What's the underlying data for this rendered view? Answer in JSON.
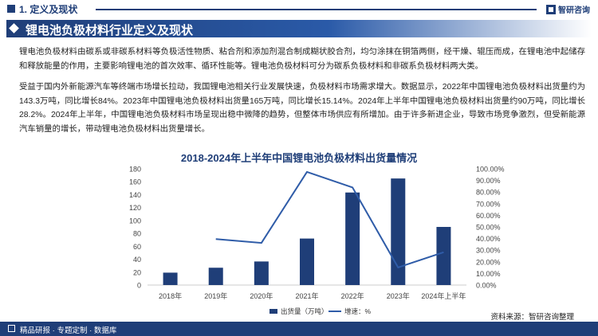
{
  "header": {
    "section_label": "1. 定义及现状",
    "brand": "智研咨询"
  },
  "title": "锂电池负极材料行业定义及现状",
  "paragraphs": [
    "锂电池负极材料由碳系或非碳系材料等负极活性物质、粘合剂和添加剂混合制成糊状胶合剂，均匀涂抹在铜箔两侧，经干燥、辊压而成，在锂电池中起储存和释放能量的作用，主要影响锂电池的首次效率、循环性能等。锂电池负极材料可分为碳系负极材料和非碳系负极材料两大类。",
    "受益于国内外新能源汽车等终端市场增长拉动，我国锂电池相关行业发展快速，负极材料市场需求增大。数据显示，2022年中国锂电池负极材料出货量约为143.3万吨，同比增长84%。2023年中国锂电池负极材料出货量165万吨，同比增长15.14%。2024年上半年中国锂电池负极材料出货量约90万吨，同比增长28.2%。2024年上半年，中国锂电池负极材料市场呈现出稳中微降的趋势，但整体市场供应有所增加。由于许多新进企业，导致市场竞争激烈，但受新能源汽车销量的增长，带动锂电池负极材料出货量增长。"
  ],
  "chart_data": {
    "type": "bar+line",
    "title": "2018-2024年上半年中国锂电池负极材料出货量情况",
    "categories": [
      "2018年",
      "2019年",
      "2020年",
      "2021年",
      "2022年",
      "2023年",
      "2024年上半年"
    ],
    "series": [
      {
        "name": "出货量（万吨）",
        "type": "bar",
        "axis": "left",
        "color": "#1f3e78",
        "values": [
          19.2,
          26.8,
          36.5,
          72,
          143.3,
          165,
          90
        ]
      },
      {
        "name": "增速：%",
        "type": "line",
        "axis": "right",
        "color": "#2f5ca8",
        "values": [
          null,
          39.6,
          36.2,
          97.3,
          84,
          15.14,
          28.2
        ]
      }
    ],
    "left_axis": {
      "ylim": [
        0,
        180
      ],
      "ticks": [
        0,
        20,
        40,
        60,
        80,
        100,
        120,
        140,
        160,
        180
      ]
    },
    "right_axis": {
      "ylim": [
        0,
        100
      ],
      "ticks": [
        "0.00%",
        "10.00%",
        "20.00%",
        "30.00%",
        "40.00%",
        "50.00%",
        "60.00%",
        "70.00%",
        "80.00%",
        "90.00%",
        "100.00%"
      ]
    },
    "legend": "bottom-center"
  },
  "footer": {
    "left_text": "精品研报 · 专题定制 · 数据库",
    "source": "资料来源：智研咨询整理"
  }
}
